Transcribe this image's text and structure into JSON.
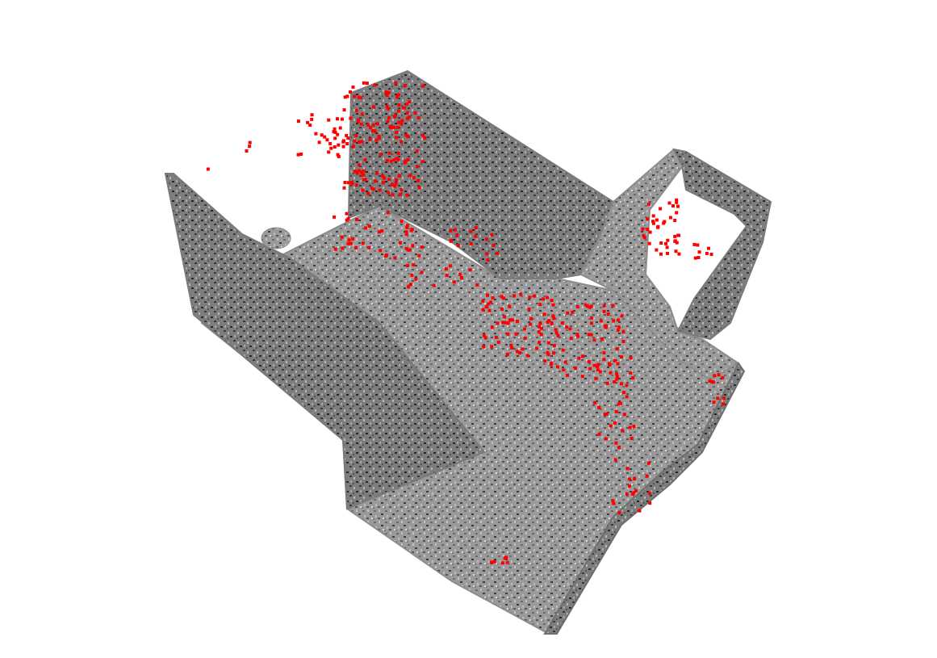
{
  "scene": {
    "background_color": "#ffffff",
    "surface_colors": [
      "#8a8a8a",
      "#9c9c9c",
      "#a8a8a8",
      "#bdbdbd",
      "#6e6e6e",
      "#4d4d4d",
      "#2b2b2b",
      "#d6d6d6"
    ],
    "point_color": "#ff0000"
  }
}
